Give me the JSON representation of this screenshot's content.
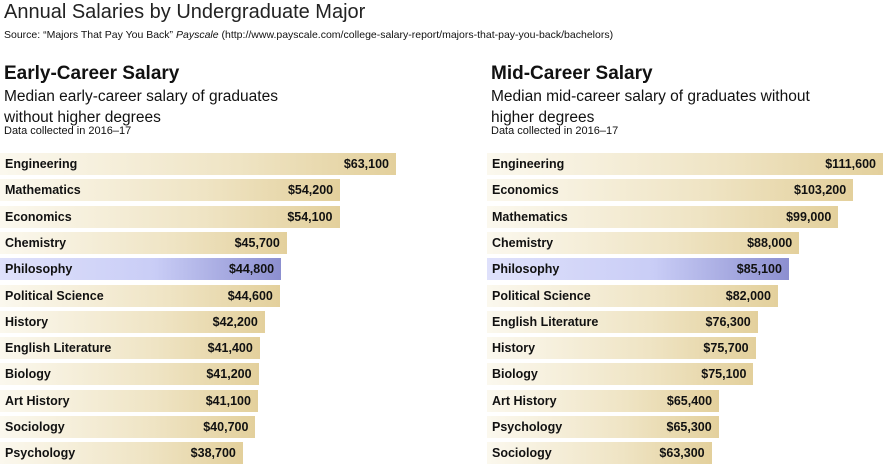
{
  "header": {
    "title": "Annual Salaries by Undergraduate Major",
    "source_prefix": "Source: “Majors That Pay You Back”",
    "source_publisher": "Payscale",
    "source_url": "(http://www.payscale.com/college-salary-report/majors-that-pay-you-back/bachelors)"
  },
  "colors": {
    "bar_light": "#fbf8ee",
    "bar_dark": "#e3d09c",
    "highlight_light": "#dfe1fb",
    "highlight_dark": "#8c8fd0"
  },
  "chart_data": [
    {
      "type": "bar",
      "orientation": "horizontal",
      "title": "Early-Career Salary",
      "subtitle": "Median early-career salary of graduates without higher degrees",
      "note": "Data collected in 2016–17",
      "highlight": "Philosophy",
      "xlim": [
        0,
        63100
      ],
      "categories": [
        "Engineering",
        "Mathematics",
        "Economics",
        "Chemistry",
        "Philosophy",
        "Political Science",
        "History",
        "English Literature",
        "Biology",
        "Art History",
        "Sociology",
        "Psychology"
      ],
      "values": [
        63100,
        54200,
        54100,
        45700,
        44800,
        44600,
        42200,
        41400,
        41200,
        41100,
        40700,
        38700
      ],
      "value_labels": [
        "$63,100",
        "$54,200",
        "$54,100",
        "$45,700",
        "$44,800",
        "$44,600",
        "$42,200",
        "$41,400",
        "$41,200",
        "$41,100",
        "$40,700",
        "$38,700"
      ]
    },
    {
      "type": "bar",
      "orientation": "horizontal",
      "title": "Mid-Career Salary",
      "subtitle": "Median mid-career salary of graduates without higher degrees",
      "note": "Data collected in 2016–17",
      "highlight": "Philosophy",
      "xlim": [
        0,
        111600
      ],
      "categories": [
        "Engineering",
        "Economics",
        "Mathematics",
        "Chemistry",
        "Philosophy",
        "Political Science",
        "English Literature",
        "History",
        "Biology",
        "Art History",
        "Psychology",
        "Sociology"
      ],
      "values": [
        111600,
        103200,
        99000,
        88000,
        85100,
        82000,
        76300,
        75700,
        75100,
        65400,
        65300,
        63300
      ],
      "value_labels": [
        "$111,600",
        "$103,200",
        "$99,000",
        "$88,000",
        "$85,100",
        "$82,000",
        "$76,300",
        "$75,700",
        "$75,100",
        "$65,400",
        "$65,300",
        "$63,300"
      ]
    }
  ]
}
